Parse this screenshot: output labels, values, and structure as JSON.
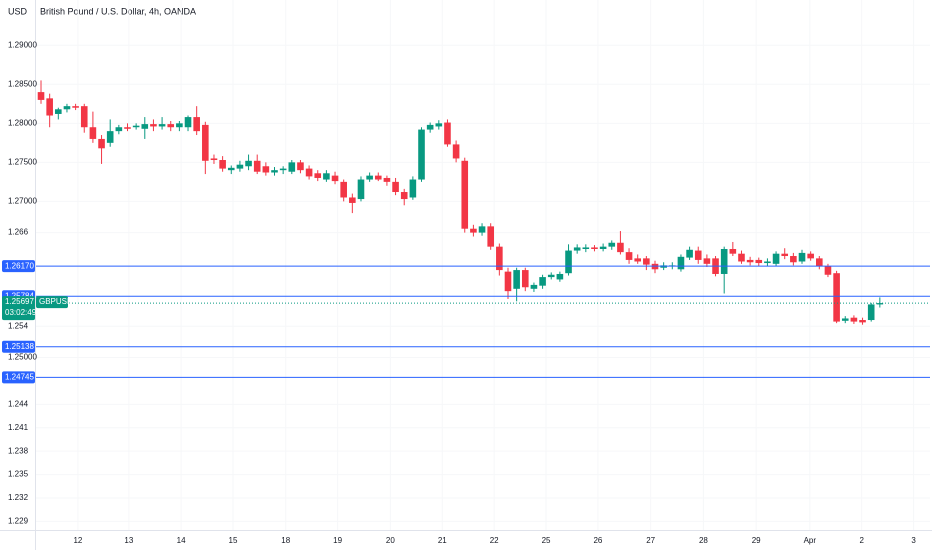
{
  "chart_data": {
    "type": "candlestick",
    "currency": "USD",
    "title": "British Pound / U.S. Dollar, 4h, OANDA",
    "symbol": "GBPUSD",
    "countdown": "03:02:49",
    "last_price": 1.25697,
    "up_color": "#089981",
    "down_color": "#f23645",
    "line_color": "#2962ff",
    "grid": true,
    "open": [
      1.284,
      1.2832,
      1.2812,
      1.2818,
      1.2822,
      1.2822,
      1.2795,
      1.278,
      1.2775,
      1.279,
      1.2795,
      1.2795,
      1.2793,
      1.2799,
      1.2796,
      1.2799,
      1.2795,
      1.2795,
      1.2808,
      1.2798,
      1.2755,
      1.2753,
      1.274,
      1.2742,
      1.2745,
      1.2752,
      1.2745,
      1.2737,
      1.274,
      1.2738,
      1.275,
      1.2742,
      1.2736,
      1.2728,
      1.2733,
      1.2725,
      1.2705,
      1.2703,
      1.2728,
      1.2733,
      1.273,
      1.2725,
      1.2712,
      1.2705,
      1.2728,
      1.2792,
      1.2796,
      1.2801,
      1.2773,
      1.2752,
      1.2665,
      1.266,
      1.2668,
      1.2642,
      1.261,
      1.2588,
      1.2612,
      1.2588,
      1.2592,
      1.2603,
      1.26,
      1.2608,
      1.2637,
      1.2639,
      1.2641,
      1.2639,
      1.2642,
      1.2647,
      1.2635,
      1.2627,
      1.2627,
      1.262,
      1.2615,
      1.2617,
      1.2613,
      1.2628,
      1.2637,
      1.2627,
      1.2627,
      1.2607,
      1.2639,
      1.2633,
      1.2625,
      1.2625,
      1.2621,
      1.262,
      1.2633,
      1.263,
      1.2623,
      1.2633,
      1.2627,
      1.2617,
      1.2608,
      1.2547,
      1.2551,
      1.2548,
      1.2548,
      1.2568
    ],
    "high": [
      1.2855,
      1.2838,
      1.282,
      1.2825,
      1.2825,
      1.2825,
      1.2815,
      1.2785,
      1.2805,
      1.2798,
      1.28,
      1.28,
      1.2808,
      1.2805,
      1.2808,
      1.2803,
      1.2803,
      1.281,
      1.2822,
      1.2802,
      1.276,
      1.2758,
      1.2746,
      1.2752,
      1.276,
      1.276,
      1.275,
      1.2744,
      1.2745,
      1.2753,
      1.2753,
      1.2746,
      1.274,
      1.274,
      1.2738,
      1.2728,
      1.271,
      1.2732,
      1.2737,
      1.2737,
      1.2733,
      1.273,
      1.2716,
      1.2732,
      1.2795,
      1.2801,
      1.2804,
      1.2805,
      1.2778,
      1.2756,
      1.267,
      1.2672,
      1.2672,
      1.2646,
      1.2615,
      1.2615,
      1.2615,
      1.2596,
      1.2606,
      1.2609,
      1.261,
      1.2645,
      1.2645,
      1.2645,
      1.2644,
      1.2646,
      1.265,
      1.2662,
      1.264,
      1.2632,
      1.263,
      1.2624,
      1.2622,
      1.2622,
      1.2632,
      1.2642,
      1.2642,
      1.2632,
      1.263,
      1.2642,
      1.2648,
      1.2637,
      1.2629,
      1.2628,
      1.2627,
      1.2636,
      1.264,
      1.2634,
      1.2638,
      1.2636,
      1.263,
      1.262,
      1.2611,
      1.2553,
      1.2554,
      1.2551,
      1.257,
      1.2577
    ],
    "low": [
      1.2825,
      1.2795,
      1.2805,
      1.2814,
      1.2817,
      1.2788,
      1.2775,
      1.2748,
      1.277,
      1.2786,
      1.279,
      1.2792,
      1.278,
      1.279,
      1.2792,
      1.279,
      1.279,
      1.279,
      1.2785,
      1.2735,
      1.2748,
      1.2738,
      1.2735,
      1.2738,
      1.274,
      1.2735,
      1.2733,
      1.2733,
      1.2735,
      1.2735,
      1.2736,
      1.2728,
      1.2726,
      1.2725,
      1.2722,
      1.27,
      1.2685,
      1.27,
      1.2725,
      1.2726,
      1.272,
      1.2708,
      1.2695,
      1.2702,
      1.2725,
      1.2788,
      1.2792,
      1.277,
      1.275,
      1.266,
      1.2655,
      1.2656,
      1.2638,
      1.2605,
      1.2575,
      1.2572,
      1.2585,
      1.2584,
      1.2588,
      1.26,
      1.2597,
      1.2605,
      1.2633,
      1.2635,
      1.2636,
      1.2636,
      1.2638,
      1.2632,
      1.262,
      1.262,
      1.2612,
      1.2608,
      1.2612,
      1.2613,
      1.261,
      1.2625,
      1.262,
      1.2616,
      1.2604,
      1.2582,
      1.263,
      1.262,
      1.2618,
      1.2617,
      1.2617,
      1.2617,
      1.2626,
      1.2618,
      1.262,
      1.2624,
      1.2613,
      1.2603,
      1.2544,
      1.2544,
      1.2543,
      1.2542,
      1.2546,
      1.2564
    ],
    "close": [
      1.283,
      1.281,
      1.2818,
      1.2822,
      1.282,
      1.2795,
      1.278,
      1.2768,
      1.279,
      1.2795,
      1.2793,
      1.2797,
      1.2799,
      1.2796,
      1.2799,
      1.2795,
      1.28,
      1.2808,
      1.279,
      1.2752,
      1.2753,
      1.2742,
      1.2743,
      1.2747,
      1.2752,
      1.2738,
      1.2737,
      1.274,
      1.2742,
      1.275,
      1.274,
      1.2732,
      1.273,
      1.2736,
      1.2726,
      1.2705,
      1.2698,
      1.2728,
      1.2733,
      1.2728,
      1.2725,
      1.2712,
      1.2703,
      1.2728,
      1.2792,
      1.2798,
      1.28,
      1.2773,
      1.2755,
      1.2665,
      1.266,
      1.2668,
      1.2642,
      1.2612,
      1.2585,
      1.2612,
      1.259,
      1.2593,
      1.2603,
      1.2606,
      1.2607,
      1.2637,
      1.2641,
      1.2641,
      1.2639,
      1.2642,
      1.2647,
      1.2635,
      1.2625,
      1.2623,
      1.2619,
      1.2613,
      1.2618,
      1.2618,
      1.2629,
      1.2638,
      1.2625,
      1.262,
      1.2607,
      1.2639,
      1.2633,
      1.2623,
      1.2622,
      1.2621,
      1.2623,
      1.2633,
      1.263,
      1.2622,
      1.2634,
      1.2627,
      1.2617,
      1.2606,
      1.2546,
      1.255,
      1.2546,
      1.2545,
      1.2568,
      1.25697
    ],
    "horizontal_lines": [
      {
        "value": 1.2617,
        "label": "1.26170"
      },
      {
        "value": 1.25784,
        "label": "1.25784"
      },
      {
        "value": 1.25138,
        "label": "1.25138"
      },
      {
        "value": 1.24745,
        "label": "1.24745"
      }
    ],
    "ylim": [
      1.2279,
      1.2958
    ],
    "yticks": [
      {
        "value": 1.29,
        "label": "1.29000"
      },
      {
        "value": 1.285,
        "label": "1.28500"
      },
      {
        "value": 1.28,
        "label": "1.28000"
      },
      {
        "value": 1.275,
        "label": "1.27500"
      },
      {
        "value": 1.27,
        "label": "1.27000"
      },
      1.266,
      1.254,
      {
        "value": 1.25,
        "label": "1.25000"
      },
      1.244,
      1.241,
      1.238,
      1.235,
      1.232,
      1.229
    ],
    "xlim": [
      -0.58,
      102.8
    ],
    "xticks": [
      {
        "value": 4.27,
        "label": "12"
      },
      {
        "value": 10.16,
        "label": "13"
      },
      {
        "value": 16.2,
        "label": "14"
      },
      {
        "value": 22.2,
        "label": "15"
      },
      {
        "value": 28.3,
        "label": "18"
      },
      {
        "value": 34.3,
        "label": "19"
      },
      {
        "value": 40.4,
        "label": "20"
      },
      {
        "value": 46.4,
        "label": "21"
      },
      {
        "value": 52.4,
        "label": "22"
      },
      {
        "value": 58.4,
        "label": "25"
      },
      {
        "value": 64.4,
        "label": "26"
      },
      {
        "value": 70.5,
        "label": "27"
      },
      {
        "value": 76.6,
        "label": "28"
      },
      {
        "value": 82.7,
        "label": "29"
      },
      {
        "value": 88.9,
        "label": "Apr"
      },
      {
        "value": 94.9,
        "label": "2"
      },
      {
        "value": 100.9,
        "label": "3"
      }
    ]
  }
}
